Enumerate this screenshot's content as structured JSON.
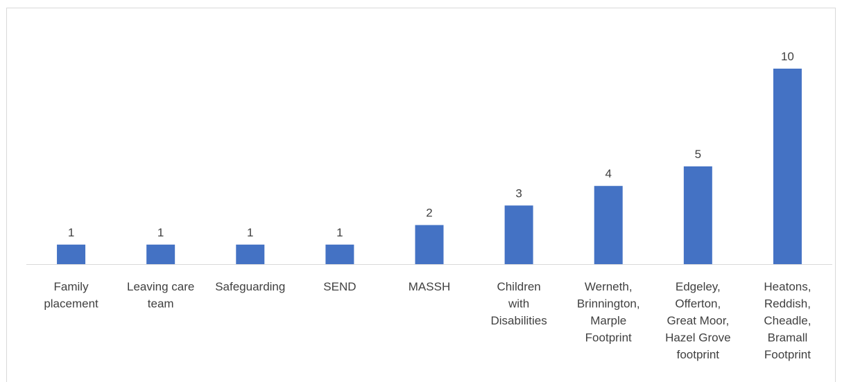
{
  "chart_data": {
    "type": "bar",
    "categories": [
      [
        "Family",
        "placement"
      ],
      [
        "Leaving care",
        "team"
      ],
      [
        "Safeguarding"
      ],
      [
        "SEND"
      ],
      [
        "MASSH"
      ],
      [
        "Children",
        "with",
        "Disabilities"
      ],
      [
        "Werneth,",
        "Brinnington,",
        "Marple",
        "Footprint"
      ],
      [
        "Edgeley,",
        "Offerton,",
        "Great Moor,",
        "Hazel Grove",
        "footprint"
      ],
      [
        "Heatons,",
        "Reddish,",
        "Cheadle,",
        "Bramall",
        "Footprint"
      ]
    ],
    "values": [
      1,
      1,
      1,
      1,
      2,
      3,
      4,
      5,
      10
    ],
    "title": "",
    "xlabel": "",
    "ylabel": "",
    "ylim": [
      0,
      10
    ],
    "grid": false,
    "legend": "none",
    "data_labels": true,
    "bar_color": "#4472C4",
    "axis_color": "#d9d9d9",
    "text_color": "#404040"
  }
}
